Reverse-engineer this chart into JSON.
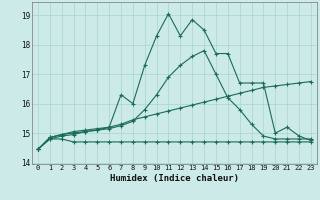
{
  "xlabel": "Humidex (Indice chaleur)",
  "bg_color": "#cceae7",
  "grid_color": "#aad4d0",
  "line_color": "#1a6b5a",
  "xlim": [
    -0.5,
    23.5
  ],
  "ylim": [
    13.95,
    19.45
  ],
  "yticks": [
    14,
    15,
    16,
    17,
    18,
    19
  ],
  "xticks": [
    0,
    1,
    2,
    3,
    4,
    5,
    6,
    7,
    8,
    9,
    10,
    11,
    12,
    13,
    14,
    15,
    16,
    17,
    18,
    19,
    20,
    21,
    22,
    23
  ],
  "series1_x": [
    0,
    1,
    2,
    3,
    4,
    5,
    6,
    7,
    8,
    9,
    10,
    11,
    12,
    13,
    14,
    15,
    16,
    17,
    18,
    19,
    20,
    21,
    22,
    23
  ],
  "series1_y": [
    14.45,
    14.8,
    14.8,
    14.7,
    14.7,
    14.7,
    14.7,
    14.7,
    14.7,
    14.7,
    14.7,
    14.7,
    14.7,
    14.7,
    14.7,
    14.7,
    14.7,
    14.7,
    14.7,
    14.7,
    14.7,
    14.7,
    14.7,
    14.7
  ],
  "series2_x": [
    0,
    1,
    2,
    3,
    4,
    5,
    6,
    7,
    8,
    9,
    10,
    11,
    12,
    13,
    14,
    15,
    16,
    17,
    18,
    19,
    20,
    21,
    22,
    23
  ],
  "series2_y": [
    14.45,
    14.8,
    14.9,
    14.95,
    15.05,
    15.1,
    15.2,
    15.3,
    15.45,
    15.55,
    15.65,
    15.75,
    15.85,
    15.95,
    16.05,
    16.15,
    16.25,
    16.35,
    16.45,
    16.55,
    16.6,
    16.65,
    16.7,
    16.75
  ],
  "series3_x": [
    0,
    1,
    2,
    3,
    4,
    5,
    6,
    7,
    8,
    9,
    10,
    11,
    12,
    13,
    14,
    15,
    16,
    17,
    18,
    19,
    20,
    21,
    22,
    23
  ],
  "series3_y": [
    14.45,
    14.85,
    14.95,
    15.0,
    15.05,
    15.1,
    15.15,
    15.25,
    15.4,
    15.8,
    16.3,
    16.9,
    17.3,
    17.6,
    17.8,
    17.0,
    16.2,
    15.8,
    15.3,
    14.9,
    14.8,
    14.8,
    14.8,
    14.8
  ],
  "series4_x": [
    0,
    1,
    2,
    3,
    4,
    5,
    6,
    7,
    8,
    9,
    10,
    11,
    12,
    13,
    14,
    15,
    16,
    17,
    18,
    19,
    20,
    21,
    22,
    23
  ],
  "series4_y": [
    14.45,
    14.85,
    14.95,
    15.05,
    15.1,
    15.15,
    15.2,
    16.3,
    16.0,
    17.3,
    18.3,
    19.05,
    18.3,
    18.85,
    18.5,
    17.7,
    17.7,
    16.7,
    16.7,
    16.7,
    15.0,
    15.2,
    14.9,
    14.75
  ]
}
